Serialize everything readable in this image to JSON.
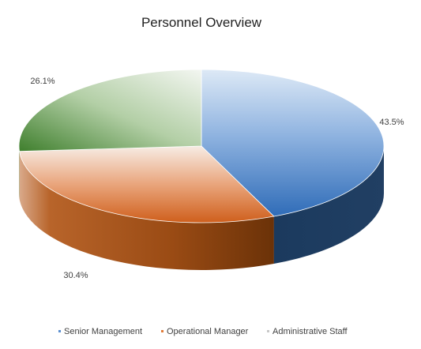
{
  "chart_data": {
    "type": "pie",
    "title": "Personnel Overview",
    "slices": [
      {
        "label": "Senior Management",
        "value": 43.5,
        "display": "43.5%",
        "color": "#4f86c6"
      },
      {
        "label": "Operational Manager",
        "value": 30.4,
        "display": "30.4%",
        "color": "#e07b39"
      },
      {
        "label": "Administrative Staff",
        "value": 26.1,
        "display": "26.1%",
        "color": "#4e8a3a"
      }
    ],
    "legend_position": "bottom",
    "style": "3d"
  }
}
